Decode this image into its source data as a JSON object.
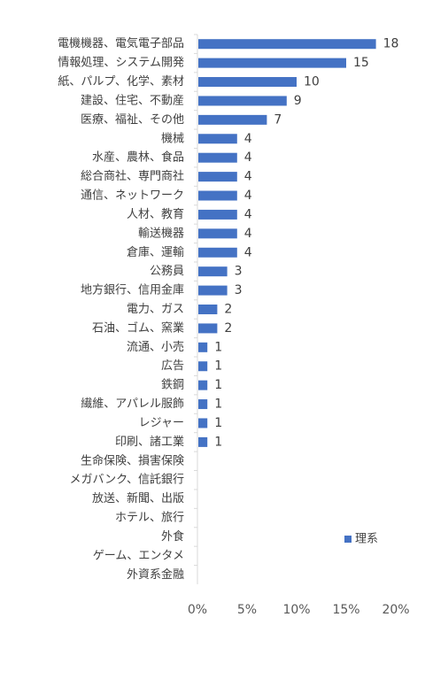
{
  "chart_data": {
    "type": "bar",
    "orientation": "horizontal",
    "categories": [
      "電機機器、電気電子部品",
      "情報処理、システム開発",
      "紙、パルプ、化学、素材",
      "建設、住宅、不動産",
      "医療、福祉、その他",
      "機械",
      "水産、農林、食品",
      "総合商社、専門商社",
      "通信、ネットワーク",
      "人材、教育",
      "輸送機器",
      "倉庫、運輸",
      "公務員",
      "地方銀行、信用金庫",
      "電力、ガス",
      "石油、ゴム、窯業",
      "流通、小売",
      "広告",
      "鉄鋼",
      "繊維、アパレル服飾",
      "レジャー",
      "印刷、諸工業",
      "生命保険、損害保険",
      "メガバンク、信託銀行",
      "放送、新聞、出版",
      "ホテル、旅行",
      "外食",
      "ゲーム、エンタメ",
      "外資系金融"
    ],
    "series": [
      {
        "name": "理系",
        "color": "#4472C4",
        "values_percent": [
          18,
          15,
          10,
          9,
          7,
          4,
          4,
          4,
          4,
          4,
          4,
          4,
          3,
          3,
          2,
          2,
          1,
          1,
          1,
          1,
          1,
          1,
          0,
          0,
          0,
          0,
          0,
          0,
          0
        ],
        "data_labels": [
          "18",
          "15",
          "10",
          "9",
          "7",
          "4",
          "4",
          "4",
          "4",
          "4",
          "4",
          "4",
          "3",
          "3",
          "2",
          "2",
          "1",
          "1",
          "1",
          "1",
          "1",
          "1",
          "",
          "",
          "",
          "",
          "",
          "",
          ""
        ]
      }
    ],
    "xlim": [
      0,
      20
    ],
    "x_ticks": [
      "0%",
      "5%",
      "10%",
      "15%",
      "20%"
    ],
    "grid": false,
    "legend_position": "bottom-right"
  }
}
